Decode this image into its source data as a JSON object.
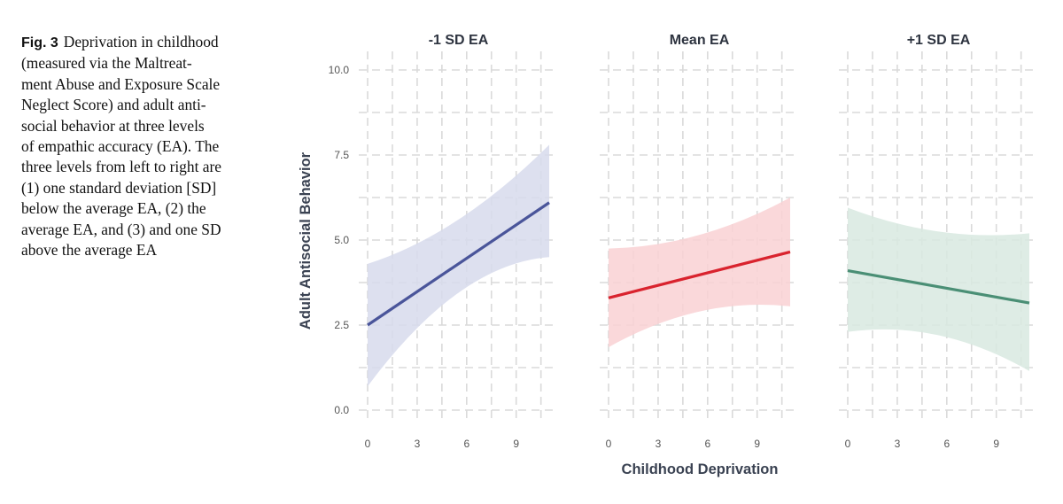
{
  "caption": {
    "label": "Fig. 3",
    "lines": [
      "Deprivation in childhood",
      "(measured via the Maltreat-",
      "ment Abuse and Exposure Scale",
      "Neglect Score) and adult anti-",
      "social behavior at three levels",
      "of empathic accuracy (EA). The",
      "three levels from left to right are",
      "(1) one standard deviation [SD]",
      "below the average EA, (2) the",
      "average EA, and (3) and one SD",
      "above the average EA"
    ]
  },
  "chart_data": {
    "type": "line",
    "xlabel": "Childhood Deprivation",
    "ylabel": "Adult Antisocial Behavior",
    "xlim": [
      0,
      11
    ],
    "ylim": [
      0,
      10.5
    ],
    "x_ticks": [
      "0",
      "3",
      "6",
      "9"
    ],
    "y_ticks": [
      "0.0",
      "2.5",
      "5.0",
      "7.5",
      "10.0"
    ],
    "grid": true,
    "panels": [
      {
        "title": "-1 SD EA",
        "color": "#4a559a",
        "band_color": "#d7dbec",
        "x": [
          0,
          11
        ],
        "y": [
          2.5,
          6.1
        ],
        "ci_x": [
          0,
          5.5,
          11
        ],
        "ci_lower": [
          0.7,
          3.45,
          4.5
        ],
        "ci_upper": [
          4.3,
          5.6,
          7.8
        ]
      },
      {
        "title": "Mean EA",
        "color": "#d9232e",
        "band_color": "#f9d1d3",
        "x": [
          0,
          11
        ],
        "y": [
          3.3,
          4.65
        ],
        "ci_x": [
          0,
          5.5,
          11
        ],
        "ci_lower": [
          1.85,
          2.9,
          3.05
        ],
        "ci_upper": [
          4.75,
          5.15,
          6.25
        ]
      },
      {
        "title": "+1 SD EA",
        "color": "#4a8f75",
        "band_color": "#d8e9e1",
        "x": [
          0,
          11
        ],
        "y": [
          4.1,
          3.15
        ],
        "ci_x": [
          0,
          5.5,
          11
        ],
        "ci_lower": [
          2.3,
          2.2,
          1.15
        ],
        "ci_upper": [
          5.95,
          5.25,
          5.2
        ]
      }
    ]
  }
}
